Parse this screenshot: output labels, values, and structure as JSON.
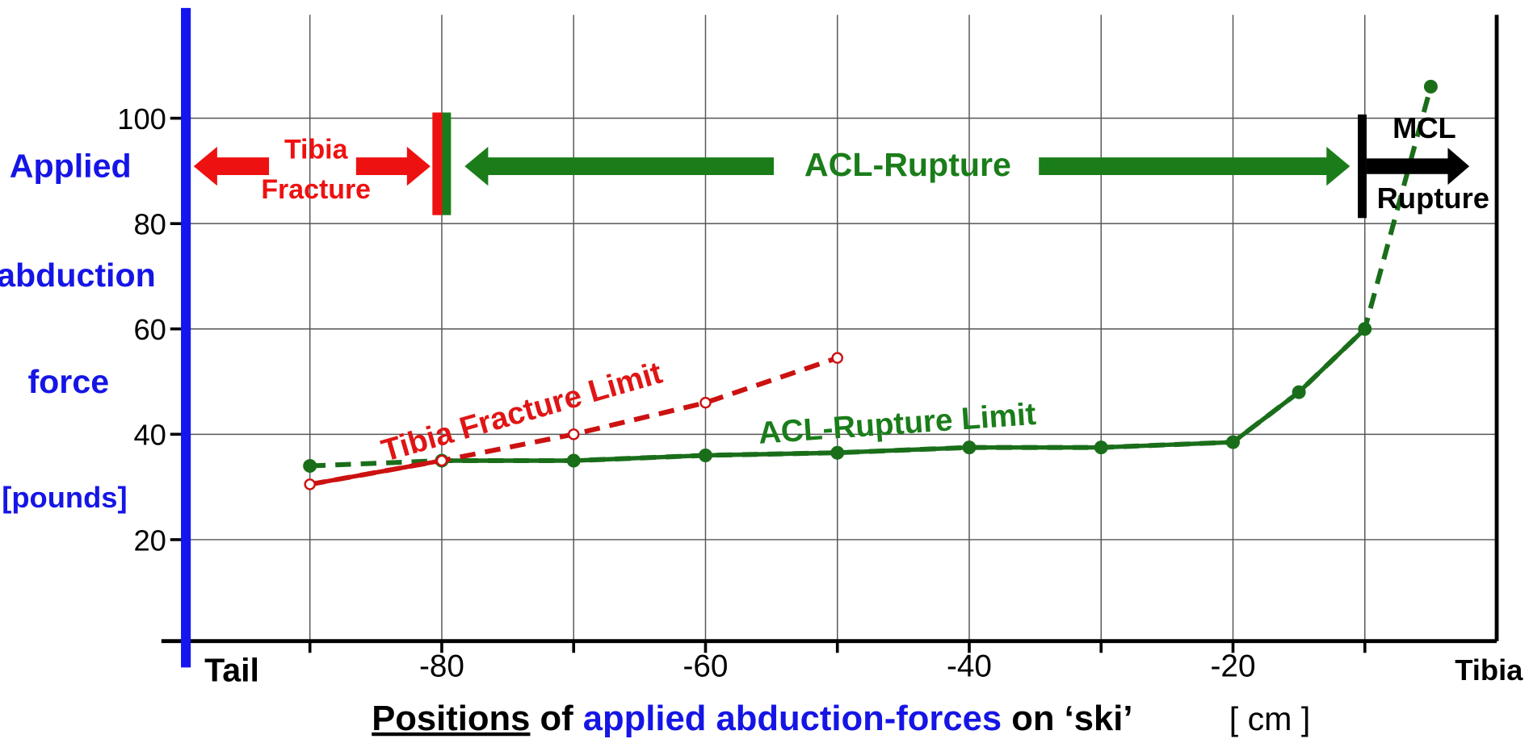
{
  "chart_data": {
    "type": "line",
    "xlim": [
      -100,
      0
    ],
    "ylim": [
      0,
      120
    ],
    "xticks": [
      -80,
      -60,
      -40,
      -20
    ],
    "minor_xticks": [
      -90,
      -70,
      -50,
      -30,
      -10
    ],
    "yticks": [
      20,
      40,
      60,
      80,
      100
    ],
    "grid": true,
    "y_label": [
      "Applied",
      "abduction",
      "force",
      "[pounds]"
    ],
    "x_label": {
      "underlined": "Positions",
      "plain1": " of ",
      "blue": "applied abduction-forces",
      "plain2": " on ‘ski’",
      "unit": "[ cm ]"
    },
    "x_end_labels": {
      "left": "Tail",
      "right": "Tibia"
    },
    "annotations": {
      "tibia_fracture": [
        "Tibia",
        "Fracture"
      ],
      "acl_rupture": "ACL-Rupture",
      "mcl_rupture": [
        "MCL",
        "Rupture"
      ]
    },
    "series": [
      {
        "name": "ACL-Rupture Limit",
        "color": "#1a6e1a",
        "marker": "filled",
        "solid_range": [
          -80,
          -10
        ],
        "x": [
          -90,
          -80,
          -70,
          -60,
          -50,
          -40,
          -30,
          -20,
          -15,
          -10,
          -5
        ],
        "values": [
          34,
          35,
          35,
          36,
          36.5,
          37.5,
          37.5,
          38.5,
          48,
          60,
          106
        ]
      },
      {
        "name": "Tibia Fracture Limit",
        "color": "#cc1111",
        "marker": "open",
        "solid_range": [
          -90,
          -80
        ],
        "x": [
          -90,
          -80,
          -70,
          -60,
          -50
        ],
        "values": [
          30.5,
          35,
          40,
          46,
          54.5
        ]
      }
    ]
  }
}
